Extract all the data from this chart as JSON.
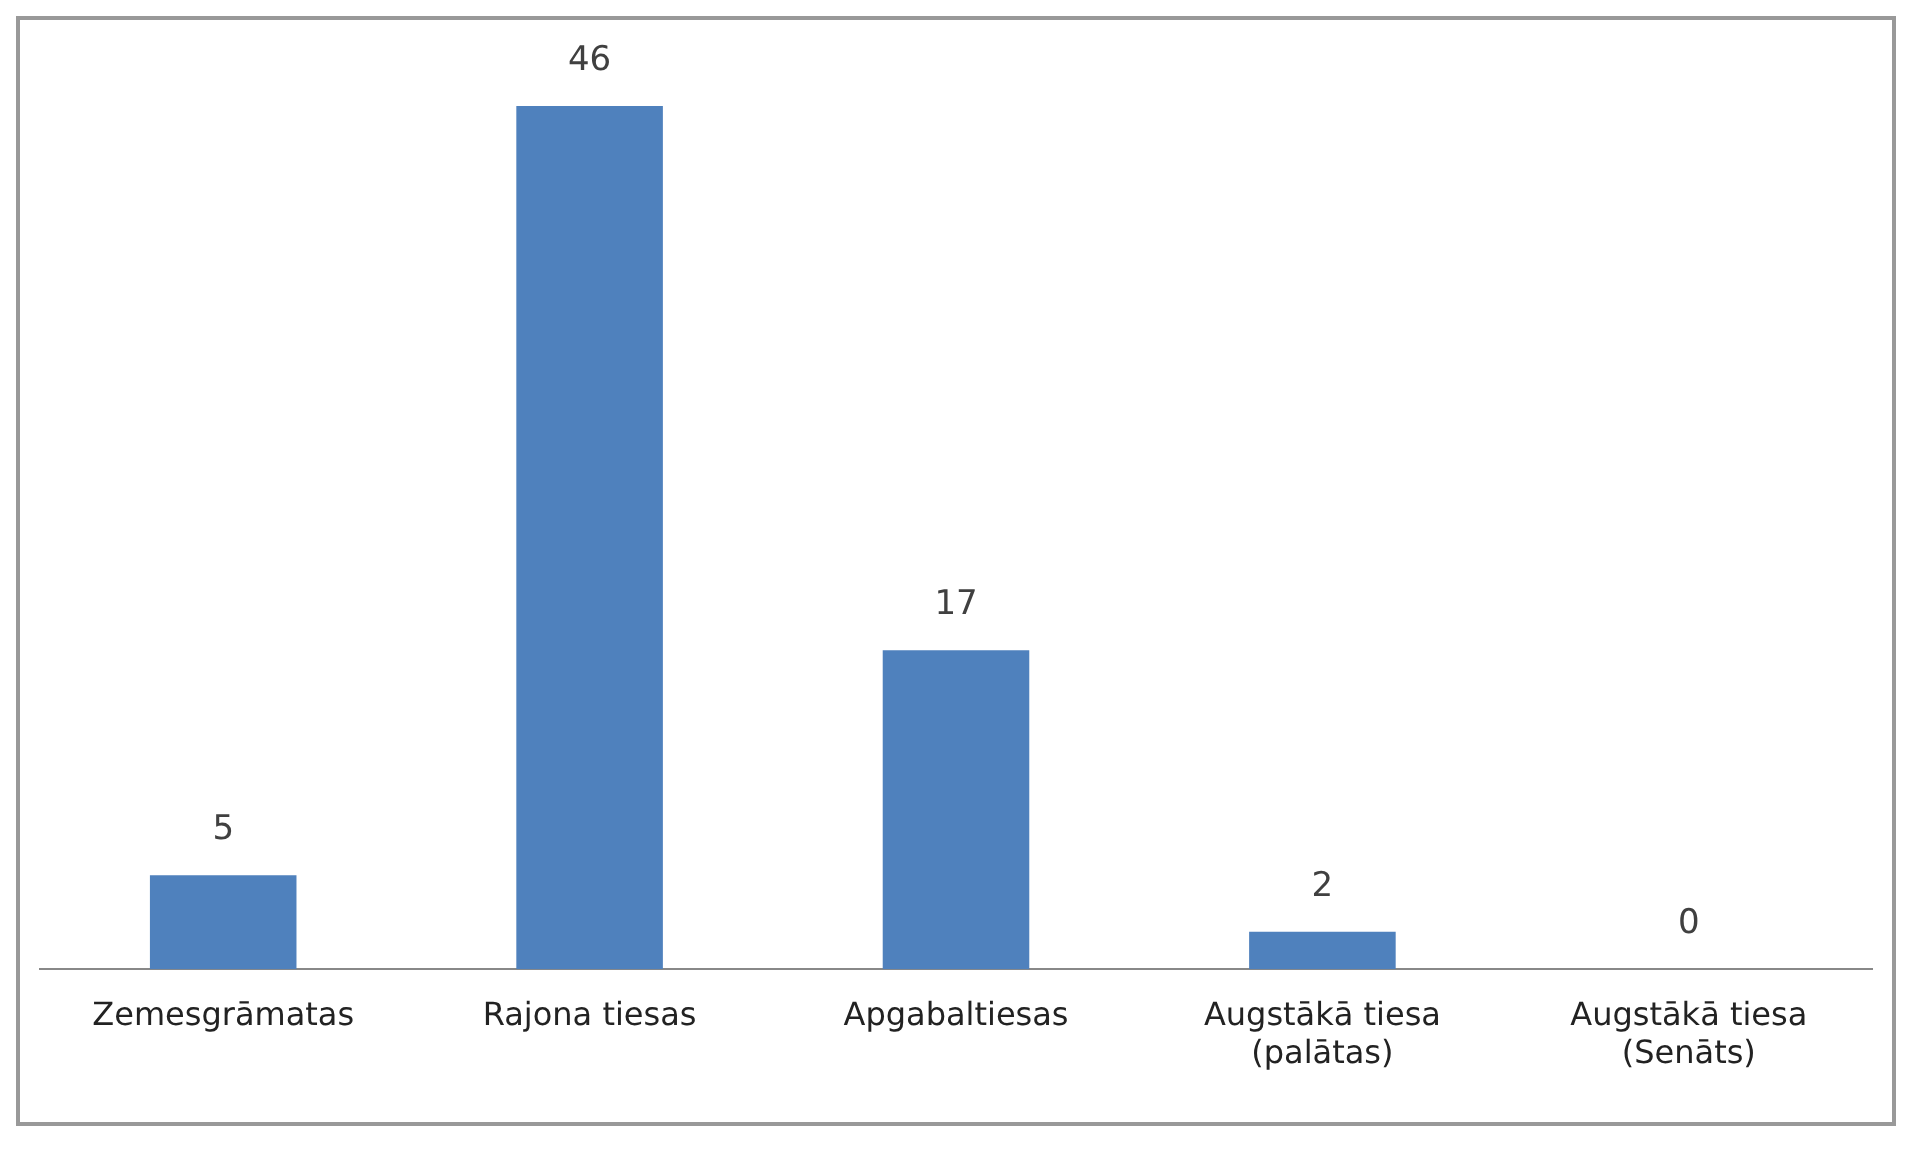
{
  "chart_data": {
    "type": "bar",
    "categories": [
      "Zemesgrāmatas",
      "Rajona tiesas",
      "Apgabaltiesas",
      "Augstākā tiesa (palātas)",
      "Augstākā tiesa (Senāts)"
    ],
    "values": [
      5,
      46,
      17,
      2,
      0
    ],
    "color": "#4f81bd",
    "data_labels": true,
    "grid": false,
    "legend": false
  }
}
